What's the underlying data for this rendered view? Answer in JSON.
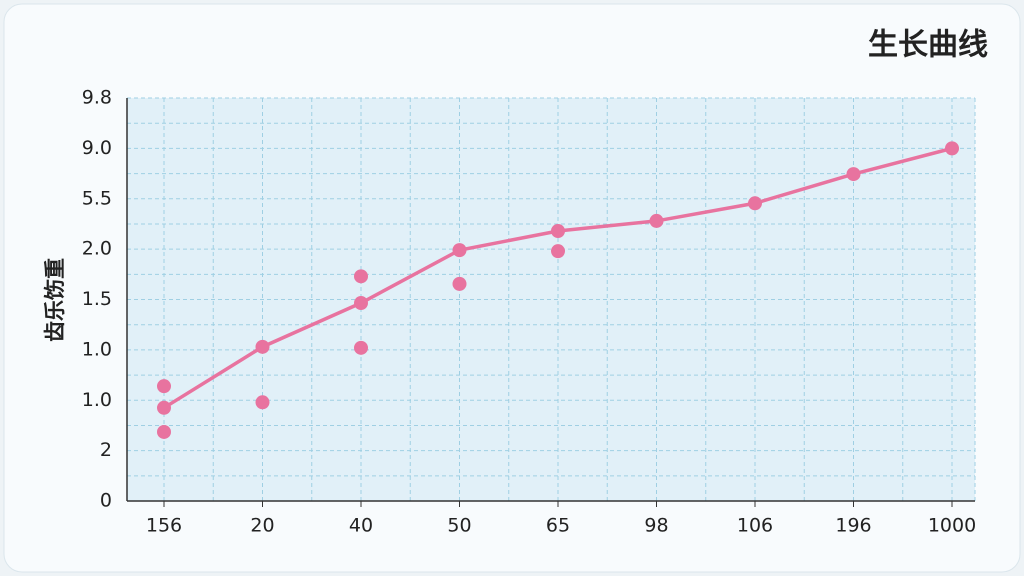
{
  "chart_data": {
    "type": "line",
    "title": "生长曲线",
    "y_label": "齿乐饬重",
    "categories": [
      "156",
      "20",
      "40",
      "50",
      "65",
      "98",
      "106",
      "196",
      "1000"
    ],
    "series": [
      {
        "type": "line",
        "color": "#e8739f",
        "values": [
          1.85,
          3.06,
          3.93,
          4.98,
          5.36,
          5.56,
          5.91,
          6.49,
          7.0
        ]
      },
      {
        "type": "scatter",
        "color": "#e8739f",
        "values": [
          2.28,
          1.96,
          4.46,
          4.31,
          4.96,
          null,
          null,
          null,
          null
        ]
      },
      {
        "type": "scatter",
        "color": "#e8739f",
        "values": [
          1.37,
          null,
          3.04,
          null,
          null,
          null,
          null,
          null,
          null
        ]
      }
    ],
    "ylim": [
      0,
      8
    ],
    "yticks": [
      0,
      {
        "value": 1,
        "label": "2"
      },
      {
        "value": 2,
        "label": "1.0"
      },
      {
        "value": 3,
        "label": "1.0"
      },
      {
        "value": 4,
        "label": "1.5"
      },
      {
        "value": 5,
        "label": "2.0"
      },
      {
        "value": 6,
        "label": "5.5"
      },
      {
        "value": 7,
        "label": "9.0"
      },
      {
        "value": 8,
        "label": "9.8"
      }
    ],
    "grid": true
  }
}
